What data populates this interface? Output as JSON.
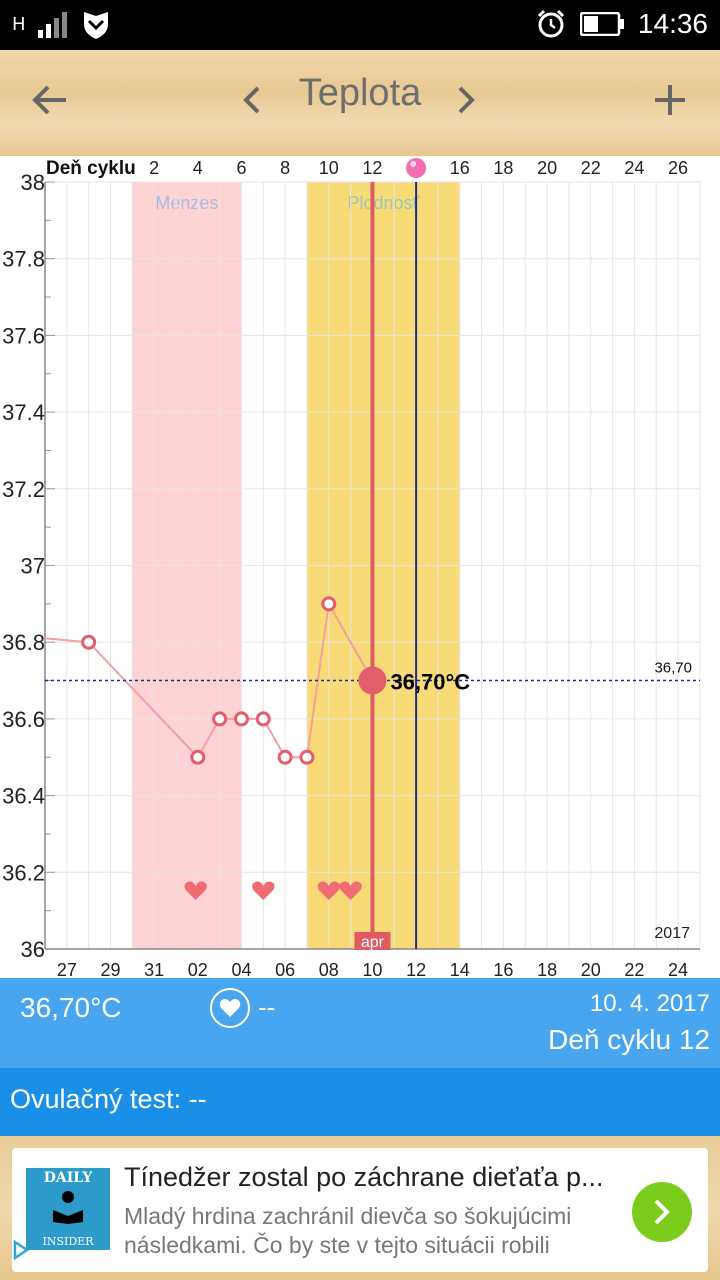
{
  "status_bar": {
    "network": "H",
    "time": "14:36"
  },
  "toolbar": {
    "title": "Teplota"
  },
  "chart_data": {
    "type": "line",
    "top_axis_label": "Deň cyklu",
    "top_ticks": [
      "2",
      "4",
      "6",
      "8",
      "10",
      "12",
      "",
      "16",
      "18",
      "20",
      "22",
      "24",
      "26"
    ],
    "bottom_ticks": [
      "27",
      "29",
      "31",
      "02",
      "04",
      "06",
      "08",
      "10",
      "12",
      "14",
      "16",
      "18",
      "20",
      "22",
      "24"
    ],
    "y_ticks": [
      "38",
      "37.8",
      "37.6",
      "37.4",
      "37.2",
      "37",
      "36.8",
      "36.6",
      "36.4",
      "36.2",
      "36"
    ],
    "ylim": [
      36,
      38
    ],
    "bands": [
      {
        "label": "Menzes",
        "color": "#ffd3d3"
      },
      {
        "label": "Plodnosť",
        "color": "#f8db76"
      }
    ],
    "series": [
      {
        "color": "#f2a0a0",
        "x": [
          "28",
          "02",
          "03",
          "04",
          "05",
          "06",
          "07",
          "08"
        ],
        "y": [
          36.8,
          36.5,
          36.6,
          36.6,
          36.6,
          36.5,
          36.5,
          36.9
        ]
      }
    ],
    "selected": {
      "date": "10",
      "value": 36.7,
      "label": "36,70°C",
      "marker": "apr"
    },
    "reference_line": {
      "value": 36.7,
      "label": "36,70"
    },
    "year_label": "2017"
  },
  "info": {
    "temperature": "36,70°C",
    "intercourse": "--",
    "date": "10. 4. 2017",
    "cycle_day": "Deň cyklu 12"
  },
  "ovulation_test": "Ovulačný test: --",
  "ad": {
    "logo_top": "DAILY",
    "logo_bottom": "INSIDER",
    "title": "Tínedžer zostal po záchrane dieťaťa p...",
    "description": "Mladý hrdina zachránil dievča so šokujúcimi následkami. Čo by ste v tejto situácii robili"
  },
  "colors": {
    "accent_blue": "#48a6f0",
    "dark_blue": "#1a8fe8",
    "fertile": "#f8db76",
    "menses": "#ffd3d3",
    "marker_red": "#e35d6a"
  }
}
